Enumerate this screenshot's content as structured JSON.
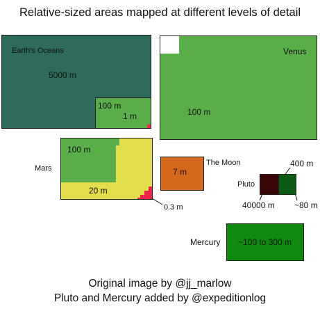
{
  "title": "Relative-sized areas mapped at different levels of detail",
  "colors": {
    "ocean": "#2e6b5b",
    "green": "#5aae4a",
    "mars_yellow": "#e2dd4c",
    "red": "#f2264a",
    "moon": "#d4691d",
    "pluto_dark": "#3a0707",
    "pluto_green": "#0b5a16",
    "mercury": "#0f8a0f"
  },
  "oceans": {
    "name": "Earth's Oceans",
    "coarse": "5000 m",
    "mid": "100 m",
    "fine": "1 m"
  },
  "venus": {
    "name": "Venus",
    "value": "100 m"
  },
  "mars": {
    "name": "Mars",
    "coarse": "100 m",
    "mid": "20 m",
    "fine": "0.3 m"
  },
  "moon": {
    "name": "The Moon",
    "value": "7 m"
  },
  "pluto": {
    "name": "Pluto",
    "coarse": "40000 m",
    "mid": "400 m",
    "fine": "~80 m"
  },
  "mercury": {
    "name": "Mercury",
    "value": "~100 to 300 m"
  },
  "credits": {
    "line1": "Original image by @jj_marlow",
    "line2": "Pluto and Mercury added by @expeditionlog"
  }
}
